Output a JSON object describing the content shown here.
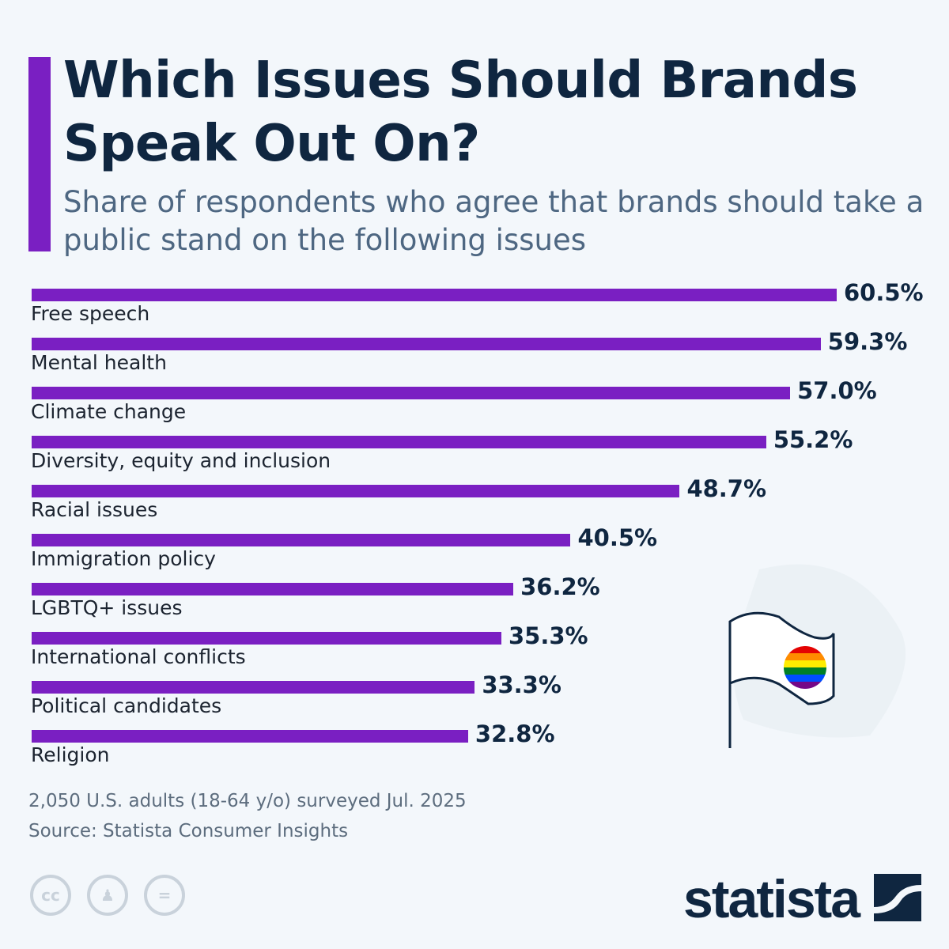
{
  "header": {
    "title": "Which Issues Should Brands Speak Out On?",
    "subtitle": "Share of respondents who agree that brands should take a public stand on the following issues"
  },
  "chart_data": {
    "type": "bar",
    "orientation": "horizontal",
    "categories": [
      "Free speech",
      "Mental health",
      "Climate change",
      "Diversity, equity and inclusion",
      "Racial issues",
      "Immigration policy",
      "LGBTQ+ issues",
      "International conflicts",
      "Political candidates",
      "Religion"
    ],
    "values": [
      60.5,
      59.3,
      57.0,
      55.2,
      48.7,
      40.5,
      36.2,
      35.3,
      33.3,
      32.8
    ],
    "value_labels": [
      "60.5%",
      "59.3%",
      "57.0%",
      "55.2%",
      "48.7%",
      "40.5%",
      "36.2%",
      "35.3%",
      "33.3%",
      "32.8%"
    ],
    "unit": "%",
    "bar_color": "#7a1fc2",
    "grid": false
  },
  "footer": {
    "note": "2,050 U.S. adults (18-64 y/o) surveyed Jul. 2025",
    "source": "Source: Statista Consumer Insights",
    "license_icons": [
      "cc",
      "by",
      "nd"
    ],
    "logo": "statista"
  },
  "colors": {
    "title": "#0f2640",
    "accent": "#7a1fc2",
    "background": "#f3f7fb"
  }
}
